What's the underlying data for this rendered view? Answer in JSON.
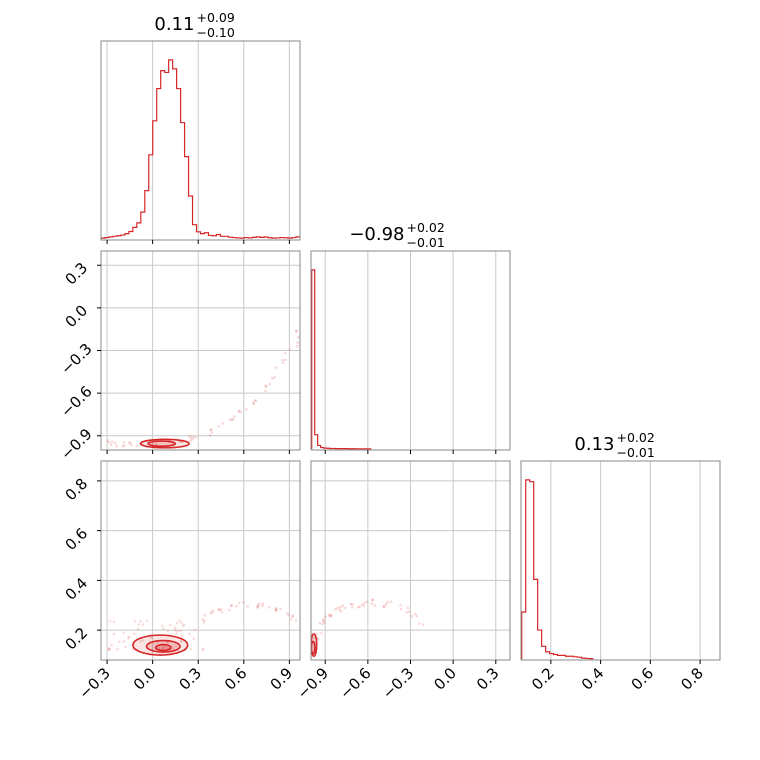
{
  "chart_data": {
    "type": "corner",
    "color": "#d62728",
    "grid": true,
    "parameters": [
      {
        "title": {
          "median": "0.11",
          "plus": "+0.09",
          "minus": "−0.10"
        },
        "range": [
          -0.34,
          0.97
        ],
        "ticks": [
          -0.3,
          0.0,
          0.3,
          0.6,
          0.9
        ],
        "tick_labels": [
          "−0.3",
          "0.0",
          "0.3",
          "0.6",
          "0.9"
        ],
        "hist": {
          "edges_start": -0.34,
          "bin_width": 0.0262,
          "counts": [
            0.5,
            0.8,
            1.2,
            1.5,
            1.8,
            2.2,
            3,
            4.2,
            6.5,
            9,
            15,
            27,
            47,
            66,
            84,
            94,
            93,
            100,
            95,
            84,
            65,
            46,
            24,
            8,
            4,
            3,
            3.5,
            2,
            1.8,
            2.5,
            1.5,
            1.5,
            1,
            0.8,
            0.6,
            0.5,
            0.8,
            0.6,
            0.9,
            1.2,
            0.9,
            1.1,
            0.7,
            0.5,
            0.6,
            0.8,
            0.7,
            0.5,
            0.8,
            1.2
          ]
        }
      },
      {
        "title": {
          "median": "−0.98",
          "plus": "+0.02",
          "minus": "−0.01"
        },
        "range": [
          -1.0,
          0.4
        ],
        "ticks": [
          -0.9,
          -0.6,
          -0.3,
          0.0,
          0.3
        ],
        "tick_labels": [
          "−0.9",
          "−0.6",
          "−0.3",
          "0.0",
          "0.3"
        ],
        "left_ticks": [
          -0.9,
          -0.6,
          -0.3,
          0.0,
          0.3
        ],
        "left_tick_labels": [
          "−0.9",
          "−0.6",
          "−0.3",
          "0.0",
          "0.3"
        ],
        "hist": {
          "edges_start": -0.995,
          "bin_width": 0.021,
          "counts": [
            100,
            8,
            2,
            0.8,
            0.5,
            0.4,
            0.3,
            0.3,
            0.2,
            0.2,
            0.2,
            0.2,
            0.15,
            0.15,
            0.15,
            0.1,
            0.1,
            0.1,
            0.1,
            0.1
          ]
        }
      },
      {
        "title": {
          "median": "0.13",
          "plus": "+0.02",
          "minus": "−0.01"
        },
        "range": [
          0.08,
          0.88
        ],
        "ticks": [
          0.2,
          0.4,
          0.6,
          0.8
        ],
        "tick_labels": [
          "0.2",
          "0.4",
          "0.6",
          "0.8"
        ],
        "left_ticks": [
          0.2,
          0.4,
          0.6,
          0.8
        ],
        "left_tick_labels": [
          "0.2",
          "0.4",
          "0.6",
          "0.8"
        ],
        "hist": {
          "edges_start": 0.083,
          "bin_width": 0.016,
          "counts": [
            26,
            99,
            98,
            44,
            16,
            7,
            4,
            3,
            2.5,
            2,
            2,
            1.5,
            1.5,
            1.2,
            1,
            0.5,
            0.3,
            0.2
          ]
        }
      }
    ],
    "scatter_1_0": {
      "arc_x": [
        -0.33,
        -0.25,
        -0.15,
        -0.05,
        0.05,
        0.15,
        0.25,
        0.35,
        0.45,
        0.55,
        0.65,
        0.75,
        0.85,
        0.93,
        0.97
      ],
      "arc_y": [
        -0.94,
        -0.955,
        -0.96,
        -0.96,
        -0.955,
        -0.945,
        -0.925,
        -0.89,
        -0.84,
        -0.77,
        -0.67,
        -0.55,
        -0.41,
        -0.27,
        -0.14
      ],
      "contours": [
        {
          "cx": 0.06,
          "cy": -0.955,
          "rx": 0.09,
          "ry": 0.018
        },
        {
          "cx": 0.08,
          "cy": -0.955,
          "rx": 0.16,
          "ry": 0.03
        }
      ]
    },
    "scatter_2_0": {
      "cloud_x": [
        -0.3,
        0.35
      ],
      "cloud_y": [
        0.12,
        0.24
      ],
      "arc_x": [
        0.3,
        0.4,
        0.5,
        0.6,
        0.7,
        0.8,
        0.9,
        0.95
      ],
      "arc_y": [
        0.24,
        0.27,
        0.29,
        0.3,
        0.3,
        0.29,
        0.27,
        0.24
      ],
      "contours": [
        {
          "cx": 0.07,
          "cy": 0.13,
          "rx": 0.05,
          "ry": 0.012
        },
        {
          "cx": 0.07,
          "cy": 0.135,
          "rx": 0.11,
          "ry": 0.023
        },
        {
          "cx": 0.05,
          "cy": 0.14,
          "rx": 0.18,
          "ry": 0.04
        }
      ]
    },
    "scatter_2_1": {
      "arc_x": [
        -0.99,
        -0.97,
        -0.94,
        -0.9,
        -0.85,
        -0.78,
        -0.7,
        -0.6,
        -0.5,
        -0.4,
        -0.3,
        -0.2
      ],
      "arc_y": [
        0.12,
        0.16,
        0.2,
        0.24,
        0.27,
        0.29,
        0.3,
        0.31,
        0.31,
        0.3,
        0.27,
        0.22
      ],
      "contours": [
        {
          "cx": -0.985,
          "cy": 0.13,
          "rx": 0.012,
          "ry": 0.025
        },
        {
          "cx": -0.98,
          "cy": 0.14,
          "rx": 0.02,
          "ry": 0.045
        }
      ]
    }
  }
}
